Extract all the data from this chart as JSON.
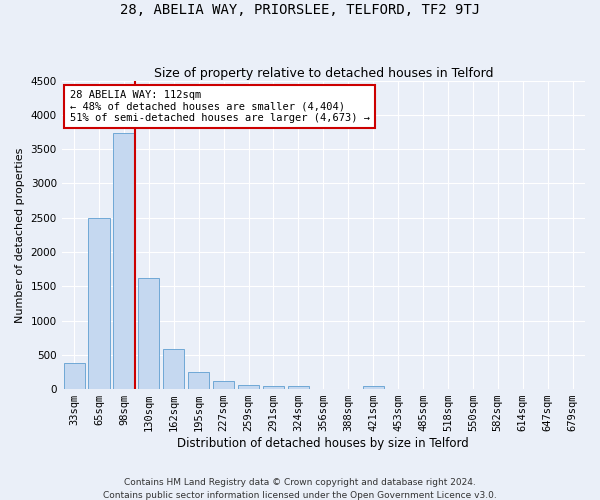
{
  "title": "28, ABELIA WAY, PRIORSLEE, TELFORD, TF2 9TJ",
  "subtitle": "Size of property relative to detached houses in Telford",
  "xlabel": "Distribution of detached houses by size in Telford",
  "ylabel": "Number of detached properties",
  "categories": [
    "33sqm",
    "65sqm",
    "98sqm",
    "130sqm",
    "162sqm",
    "195sqm",
    "227sqm",
    "259sqm",
    "291sqm",
    "324sqm",
    "356sqm",
    "388sqm",
    "421sqm",
    "453sqm",
    "485sqm",
    "518sqm",
    "550sqm",
    "582sqm",
    "614sqm",
    "647sqm",
    "679sqm"
  ],
  "values": [
    380,
    2500,
    3730,
    1620,
    585,
    250,
    120,
    60,
    50,
    50,
    0,
    0,
    50,
    0,
    0,
    0,
    0,
    0,
    0,
    0,
    0
  ],
  "bar_color": "#c5d8f0",
  "bar_edge_color": "#6fa8d6",
  "red_line_index": 2,
  "annotation_text": "28 ABELIA WAY: 112sqm\n← 48% of detached houses are smaller (4,404)\n51% of semi-detached houses are larger (4,673) →",
  "annotation_box_color": "#ffffff",
  "annotation_box_edge": "#cc0000",
  "red_line_color": "#cc0000",
  "ylim": [
    0,
    4500
  ],
  "yticks": [
    0,
    500,
    1000,
    1500,
    2000,
    2500,
    3000,
    3500,
    4000,
    4500
  ],
  "background_color": "#eaeff8",
  "grid_color": "#ffffff",
  "footer_line1": "Contains HM Land Registry data © Crown copyright and database right 2024.",
  "footer_line2": "Contains public sector information licensed under the Open Government Licence v3.0.",
  "title_fontsize": 10,
  "subtitle_fontsize": 9,
  "xlabel_fontsize": 8.5,
  "ylabel_fontsize": 8,
  "tick_fontsize": 7.5,
  "annotation_fontsize": 7.5,
  "footer_fontsize": 6.5
}
